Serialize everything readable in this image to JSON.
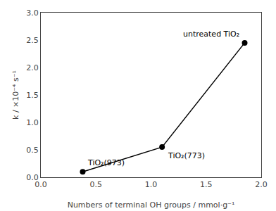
{
  "chart_data": {
    "type": "line",
    "x": [
      0.38,
      1.1,
      1.85
    ],
    "values": [
      0.1,
      0.55,
      2.45
    ],
    "annotations": [
      "TiO₂(973)",
      "TiO₂(773)",
      "untreated TiO₂"
    ],
    "xlabel": "Numbers of terminal OH groups / mmol·g⁻¹",
    "ylabel": "k / ×10⁻⁴ s⁻¹",
    "xlim": [
      0,
      2.0
    ],
    "ylim": [
      0,
      3.0
    ],
    "xticks": [
      {
        "value": 0,
        "label": "0.0"
      },
      0.5,
      {
        "value": 1.0,
        "label": "1.0"
      },
      1.5,
      {
        "value": 2.0,
        "label": "2.0"
      }
    ],
    "yticks": [
      {
        "value": 0.0,
        "label": "0.0"
      },
      0.5,
      {
        "value": 1.0,
        "label": "1.0"
      },
      1.5,
      {
        "value": 2.0,
        "label": "2.0"
      },
      2.5,
      {
        "value": 3.0,
        "label": "3.0"
      }
    ],
    "color": "black",
    "marker": "circle",
    "grid": false
  }
}
